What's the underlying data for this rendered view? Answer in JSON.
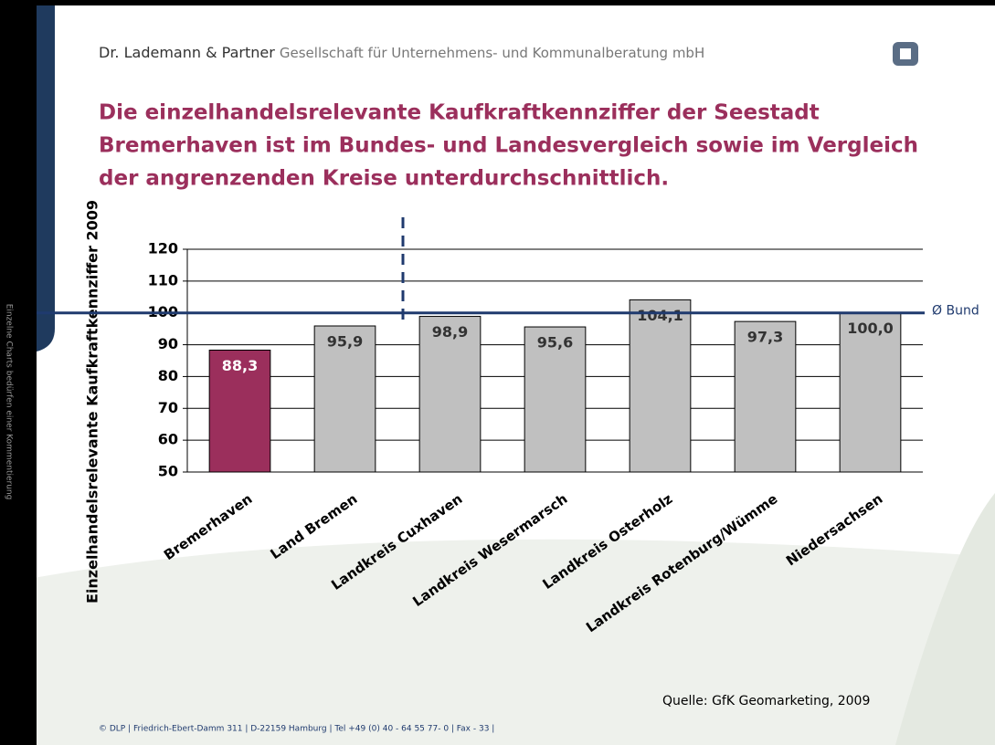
{
  "header": {
    "company": "Dr. Lademann & Partner",
    "company_sub": "Gesellschaft für Unternehmens- und Kommunalberatung mbH"
  },
  "title_lines": [
    "Die einzelhandelsrelevante Kaufkraftkennziffer der Seestadt",
    "Bremerhaven ist im Bundes- und Landesvergleich sowie im Vergleich",
    "der angrenzenden Kreise unterdurchschnittlich."
  ],
  "side_note": "Einzelne Charts bedürfen einer Kommentierung",
  "footer": "© DLP | Friedrich-Ebert-Damm 311 | D-22159 Hamburg | Tel +49 (0) 40 - 64 55 77- 0 | Fax - 33 |",
  "chart_data": {
    "type": "bar",
    "y_label": "Einzelhandelsrelevante Kaufkraftkennziffer 2009",
    "categories": [
      "Bremerhaven",
      "Land Bremen",
      "Landkreis Cuxhaven",
      "Landkreis Wesermarsch",
      "Landkreis Osterholz",
      "Landkreis Rotenburg/Wümme",
      "Niedersachsen"
    ],
    "values": [
      88.3,
      95.9,
      98.9,
      95.6,
      104.1,
      97.3,
      100.0
    ],
    "value_labels": [
      "88,3",
      "95,9",
      "98,9",
      "95,6",
      "104,1",
      "97,3",
      "100,0"
    ],
    "colors": [
      "#9b2f5c",
      "#c0c0c0",
      "#c0c0c0",
      "#c0c0c0",
      "#c0c0c0",
      "#c0c0c0",
      "#c0c0c0"
    ],
    "ylim": [
      50,
      120
    ],
    "yticks": [
      50,
      60,
      70,
      80,
      90,
      100,
      110,
      120
    ],
    "grid": true,
    "reference_line": {
      "value": 100,
      "label": "Ø Bund",
      "color": "#1f3a6e"
    },
    "source": "Quelle: GfK Geomarketing, 2009"
  }
}
